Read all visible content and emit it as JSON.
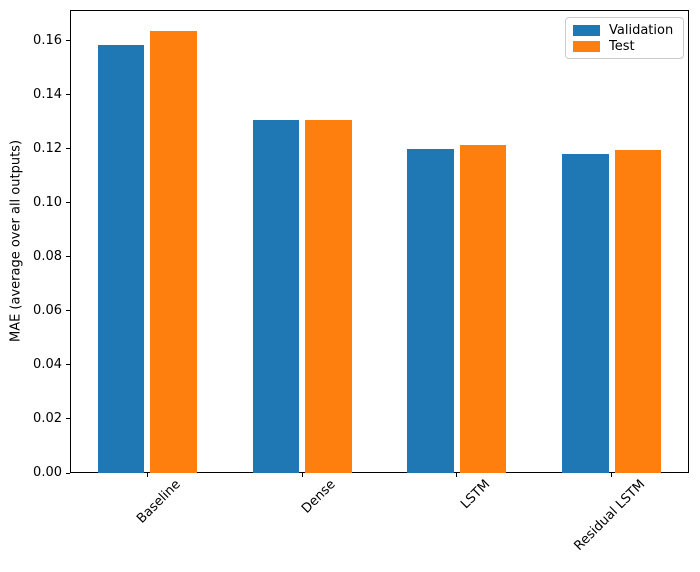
{
  "chart_data": {
    "type": "bar",
    "title": "",
    "xlabel": "",
    "ylabel": "MAE (average over all outputs)",
    "categories": [
      "Baseline",
      "Dense",
      "LSTM",
      "Residual LSTM"
    ],
    "series": [
      {
        "name": "Validation",
        "color": "#1f77b4",
        "values": [
          0.1584,
          0.1306,
          0.1198,
          0.1182
        ]
      },
      {
        "name": "Test",
        "color": "#ff7f0e",
        "values": [
          0.1636,
          0.1306,
          0.1213,
          0.1194
        ]
      }
    ],
    "ylim": [
      0,
      0.1713
    ],
    "yticks": [
      "0.00",
      "0.02",
      "0.04",
      "0.06",
      "0.08",
      "0.10",
      "0.12",
      "0.14",
      "0.16"
    ],
    "xtick_rotation_deg": 45,
    "grid": false,
    "legend": {
      "position": "upper right"
    },
    "spine_color": "#000000",
    "background": "#ffffff"
  }
}
